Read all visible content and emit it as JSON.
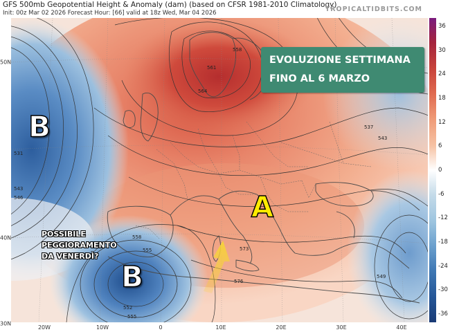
{
  "header": {
    "title": "GFS 500mb Geopotential Height & Anomaly (dam) (based on CFSR 1981-2010 Climatology)",
    "subtitle": "Init: 00z Mar 02 2026   Forecast Hour: [66]   valid at 18z Wed, Mar 04 2026",
    "brand": "TROPICALTIDBITS.COM"
  },
  "overlay": {
    "box_line1": "EVOLUZIONE SETTIMANA",
    "box_line2": "FINO AL 6 MARZO",
    "low_letter": "B",
    "high_letter": "A",
    "warning_lines": [
      "POSSIBILE",
      "PEGGIORAMENTO",
      "DA VENERDÌ?"
    ]
  },
  "colorbar": {
    "labels": [
      "36",
      "30",
      "24",
      "18",
      "12",
      "6",
      "0",
      "-6",
      "-12",
      "-18",
      "-24",
      "-30",
      "-36"
    ],
    "colors": [
      "#7a1b7e",
      "#a4243d",
      "#c9453c",
      "#e06b50",
      "#ef9a76",
      "#f6c2a4",
      "#ffffff",
      "#c5dbe9",
      "#9cc4df",
      "#6a9fcd",
      "#3f78b4",
      "#245596",
      "#193a75"
    ]
  },
  "lat_labels": [
    "50N",
    "40N",
    "30N"
  ],
  "lon_labels": [
    "20W",
    "10W",
    "0",
    "10E",
    "20E",
    "30E",
    "40E"
  ],
  "contour_labels": [
    "558",
    "561",
    "564",
    "537",
    "543",
    "531",
    "543",
    "546",
    "558",
    "555",
    "552",
    "555",
    "573",
    "576",
    "549"
  ]
}
